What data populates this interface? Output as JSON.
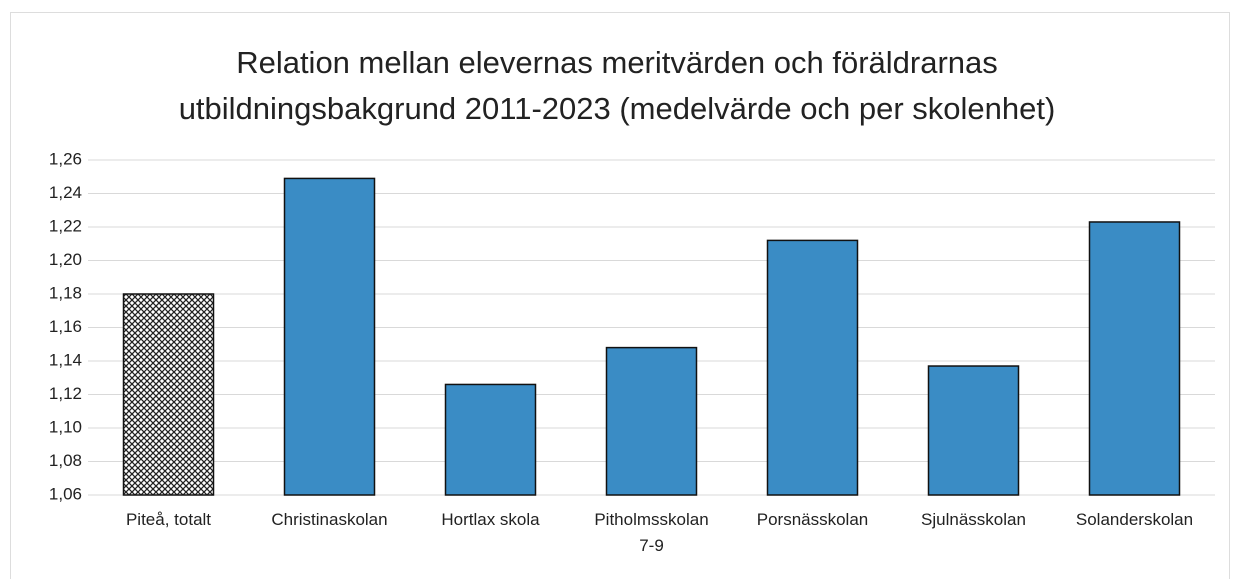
{
  "chart_data": {
    "type": "bar",
    "title": "Relation mellan elevernas meritvärden och föräldrarnas utbildningsbakgrund 2011-2023 (medelvärde och per skolenhet)",
    "categories": [
      "Piteå, totalt",
      "Christinaskolan",
      "Hortlax skola",
      "Pitholmsskolan 7-9",
      "Porsnässkolan",
      "Sjulnässkolan",
      "Solanderskolan"
    ],
    "values": [
      1.18,
      1.249,
      1.126,
      1.148,
      1.212,
      1.137,
      1.223
    ],
    "color": "#3a8cc5",
    "bar_styles": [
      "crosshatch",
      "solid",
      "solid",
      "solid",
      "solid",
      "solid",
      "solid"
    ],
    "ylim": [
      1.06,
      1.26
    ],
    "yticks": [
      {
        "value": 1.06,
        "label": "1,06"
      },
      {
        "value": 1.08,
        "label": "1,08"
      },
      {
        "value": 1.1,
        "label": "1,10"
      },
      {
        "value": 1.12,
        "label": "1,12"
      },
      {
        "value": 1.14,
        "label": "1,14"
      },
      {
        "value": 1.16,
        "label": "1,16"
      },
      {
        "value": 1.18,
        "label": "1,18"
      },
      {
        "value": 1.2,
        "label": "1,20"
      },
      {
        "value": 1.22,
        "label": "1,22"
      },
      {
        "value": 1.24,
        "label": "1,24"
      },
      {
        "value": 1.26,
        "label": "1,26"
      }
    ],
    "grid": true
  }
}
